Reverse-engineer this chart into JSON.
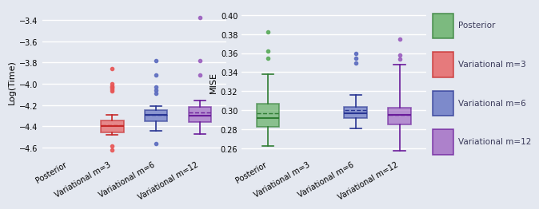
{
  "categories": [
    "Posterior",
    "Variational m=3",
    "Variational m=6",
    "Variational m=12"
  ],
  "colors": [
    "#5aab5a",
    "#e85555",
    "#5b6bbf",
    "#9b5fbf"
  ],
  "edge_colors": [
    "#2e7d32",
    "#c62828",
    "#283593",
    "#6a1b9a"
  ],
  "left_ylim": [
    -4.68,
    -3.28
  ],
  "left_yticks": [
    -4.6,
    -4.4,
    -4.2,
    -4.0,
    -3.8,
    -3.6,
    -3.4
  ],
  "right_ylim": [
    0.252,
    0.408
  ],
  "right_yticks": [
    0.26,
    0.28,
    0.3,
    0.32,
    0.34,
    0.36,
    0.38,
    0.4
  ],
  "bg_color": "#e4e8f0",
  "left_ylabel": "Log(Time)",
  "right_ylabel": "MISE",
  "left_boxes": {
    "Posterior": null,
    "Variational m=3": {
      "q1": -4.455,
      "median": -4.395,
      "mean": -4.39,
      "q3": -4.345,
      "whislo": -4.48,
      "whishi": -4.295,
      "fliers_low": [
        -4.62,
        -4.58
      ],
      "fliers_high": [
        -4.07,
        -4.05,
        -4.04,
        -4.03,
        -4.02,
        -4.0,
        -3.86
      ]
    },
    "Variational m=6": {
      "q1": -4.35,
      "median": -4.295,
      "mean": -4.29,
      "q3": -4.245,
      "whislo": -4.44,
      "whishi": -4.21,
      "fliers_low": [
        -4.56
      ],
      "fliers_high": [
        -4.09,
        -4.06,
        -4.03,
        -3.92,
        -3.78
      ]
    },
    "Variational m=12": {
      "q1": -4.36,
      "median": -4.3,
      "mean": -4.27,
      "q3": -4.22,
      "whislo": -4.47,
      "whishi": -4.16,
      "fliers_low": [],
      "fliers_high": [
        -3.92,
        -3.78,
        -3.38
      ]
    }
  },
  "right_boxes": {
    "Posterior": {
      "q1": 0.283,
      "median": 0.292,
      "mean": 0.297,
      "q3": 0.307,
      "whislo": 0.263,
      "whishi": 0.338,
      "fliers_low": [],
      "fliers_high": [
        0.355,
        0.362,
        0.382
      ]
    },
    "Variational m=3": null,
    "Variational m=6": {
      "q1": 0.292,
      "median": 0.297,
      "mean": 0.3,
      "q3": 0.304,
      "whislo": 0.281,
      "whishi": 0.316,
      "fliers_low": [],
      "fliers_high": [
        0.35,
        0.355,
        0.36
      ]
    },
    "Variational m=12": {
      "q1": 0.285,
      "median": 0.295,
      "mean": 0.295,
      "q3": 0.303,
      "whislo": 0.258,
      "whishi": 0.348,
      "fliers_low": [],
      "fliers_high": [
        0.354,
        0.358,
        0.375
      ]
    }
  },
  "legend_labels": [
    "Posterior",
    "Variational m=3",
    "Variational m=6",
    "Variational m=12"
  ]
}
